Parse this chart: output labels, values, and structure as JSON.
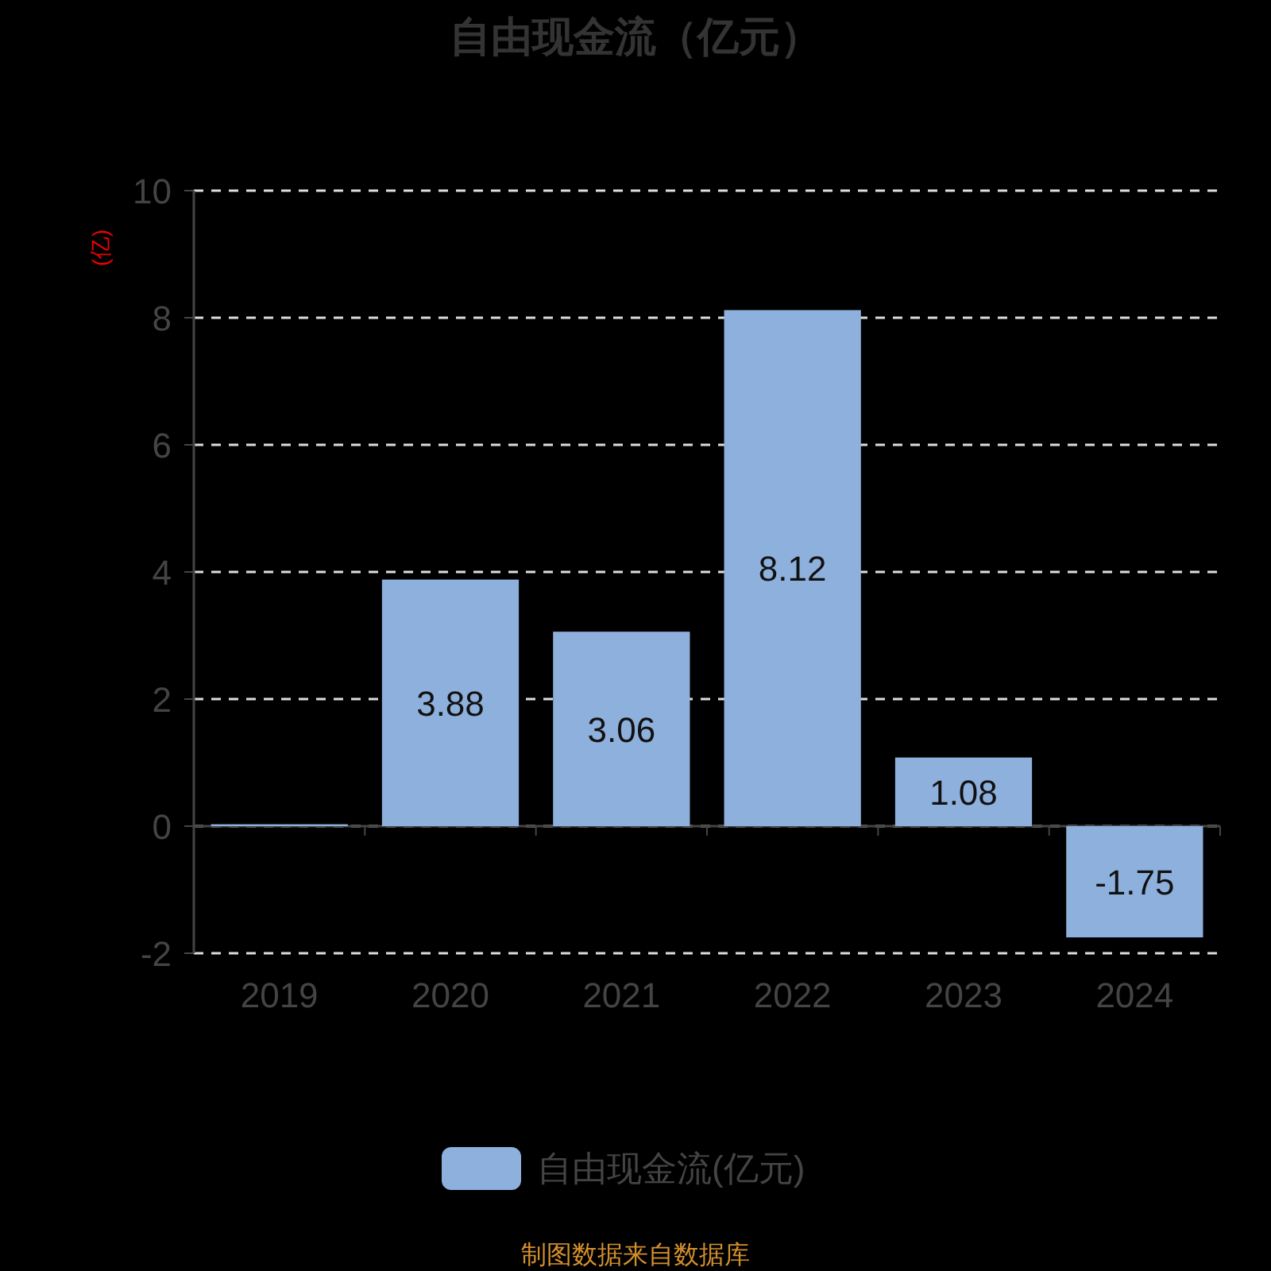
{
  "chart_data": {
    "type": "bar",
    "title": "自由现金流（亿元）",
    "ylabel": "(亿)",
    "categories": [
      "2019",
      "2020",
      "2021",
      "2022",
      "2023",
      "2024"
    ],
    "series": [
      {
        "name": "自由现金流(亿元)",
        "color": "#8eb0dc",
        "values": [
          0.03,
          3.88,
          3.06,
          8.12,
          1.08,
          -1.75
        ],
        "value_labels": [
          null,
          "3.88",
          "3.06",
          "8.12",
          "1.08",
          "-1.75"
        ]
      }
    ],
    "ylim": [
      -2,
      10
    ],
    "yticks": [
      -2,
      0,
      2,
      4,
      6,
      8,
      10
    ],
    "grid": "y",
    "legend": "bottom",
    "annotations": [
      "制图数据来自数据库"
    ]
  }
}
